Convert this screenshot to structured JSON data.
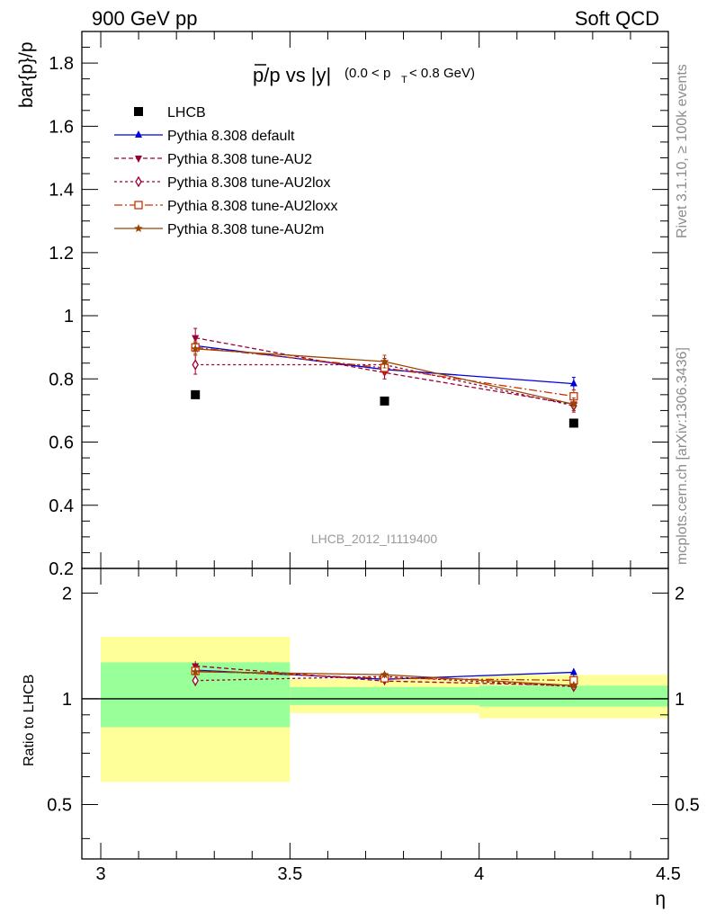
{
  "header": {
    "left": "900 GeV pp",
    "right": "Soft QCD"
  },
  "side_text": {
    "top": "Rivet 3.1.10, ≥ 100k events",
    "bottom": "mcplots.cern.ch [arXiv:1306.3436]"
  },
  "chart_data": {
    "type": "line",
    "title": "p̅/p vs |y|",
    "title_main": "p/p vs |y|",
    "title_sub": "(0.0 < p",
    "title_sub_index": "T",
    "title_sub_tail": " < 0.8 GeV)",
    "watermark": "LHCB_2012_I1119400",
    "xlabel": "η",
    "ylabel": "bar{p}/p",
    "ratio_ylabel": "Ratio to LHCB",
    "xlim": [
      2.95,
      4.5
    ],
    "ylim": [
      0.2,
      1.9
    ],
    "ratio_ylim": [
      0.35,
      2.35
    ],
    "ratio_log": true,
    "x_ticks": [
      "3",
      "3.5",
      "4",
      "4.5"
    ],
    "y_ticks": [
      "0.2",
      "0.4",
      "0.6",
      "0.8",
      "1",
      "1.2",
      "1.4",
      "1.6",
      "1.8"
    ],
    "ratio_ticks": [
      "0.5",
      "1",
      "2"
    ],
    "x": [
      3.25,
      3.75,
      4.25
    ],
    "bins": [
      [
        3.0,
        3.5
      ],
      [
        3.5,
        4.0
      ],
      [
        4.0,
        4.5
      ]
    ],
    "data": {
      "name": "LHCB",
      "values": [
        0.75,
        0.73,
        0.66
      ]
    },
    "bands": {
      "stat_ratio": [
        [
          0.83,
          1.27
        ],
        [
          0.96,
          1.08
        ],
        [
          0.95,
          1.09
        ]
      ],
      "total_ratio": [
        [
          0.58,
          1.5
        ],
        [
          0.91,
          1.14
        ],
        [
          0.88,
          1.17
        ]
      ]
    },
    "series": [
      {
        "name": "Pythia 8.308 default",
        "color": "#0000dd",
        "dash": "",
        "marker": "triangle-up",
        "values": [
          0.905,
          0.83,
          0.785
        ],
        "err": [
          0.01,
          0.01,
          0.02
        ]
      },
      {
        "name": "Pythia 8.308 tune-AU2",
        "color": "#990033",
        "dash": "5,3",
        "marker": "triangle-down",
        "values": [
          0.93,
          0.82,
          0.72
        ],
        "err": [
          0.03,
          0.02,
          0.02
        ]
      },
      {
        "name": "Pythia 8.308 tune-AU2lox",
        "color": "#990033",
        "dash": "3,3",
        "marker": "diamond-open",
        "values": [
          0.845,
          0.845,
          0.715
        ],
        "err": [
          0.03,
          0.02,
          0.02
        ]
      },
      {
        "name": "Pythia 8.308 tune-AU2loxx",
        "color": "#cc3300",
        "dash": "9,3,2,3",
        "marker": "square-open",
        "values": [
          0.9,
          0.835,
          0.745
        ],
        "err": [
          0.02,
          0.02,
          0.02
        ]
      },
      {
        "name": "Pythia 8.308 tune-AU2m",
        "color": "#994400",
        "dash": "",
        "marker": "star",
        "values": [
          0.895,
          0.855,
          0.72
        ],
        "err": [
          0.02,
          0.02,
          0.02
        ]
      }
    ]
  }
}
